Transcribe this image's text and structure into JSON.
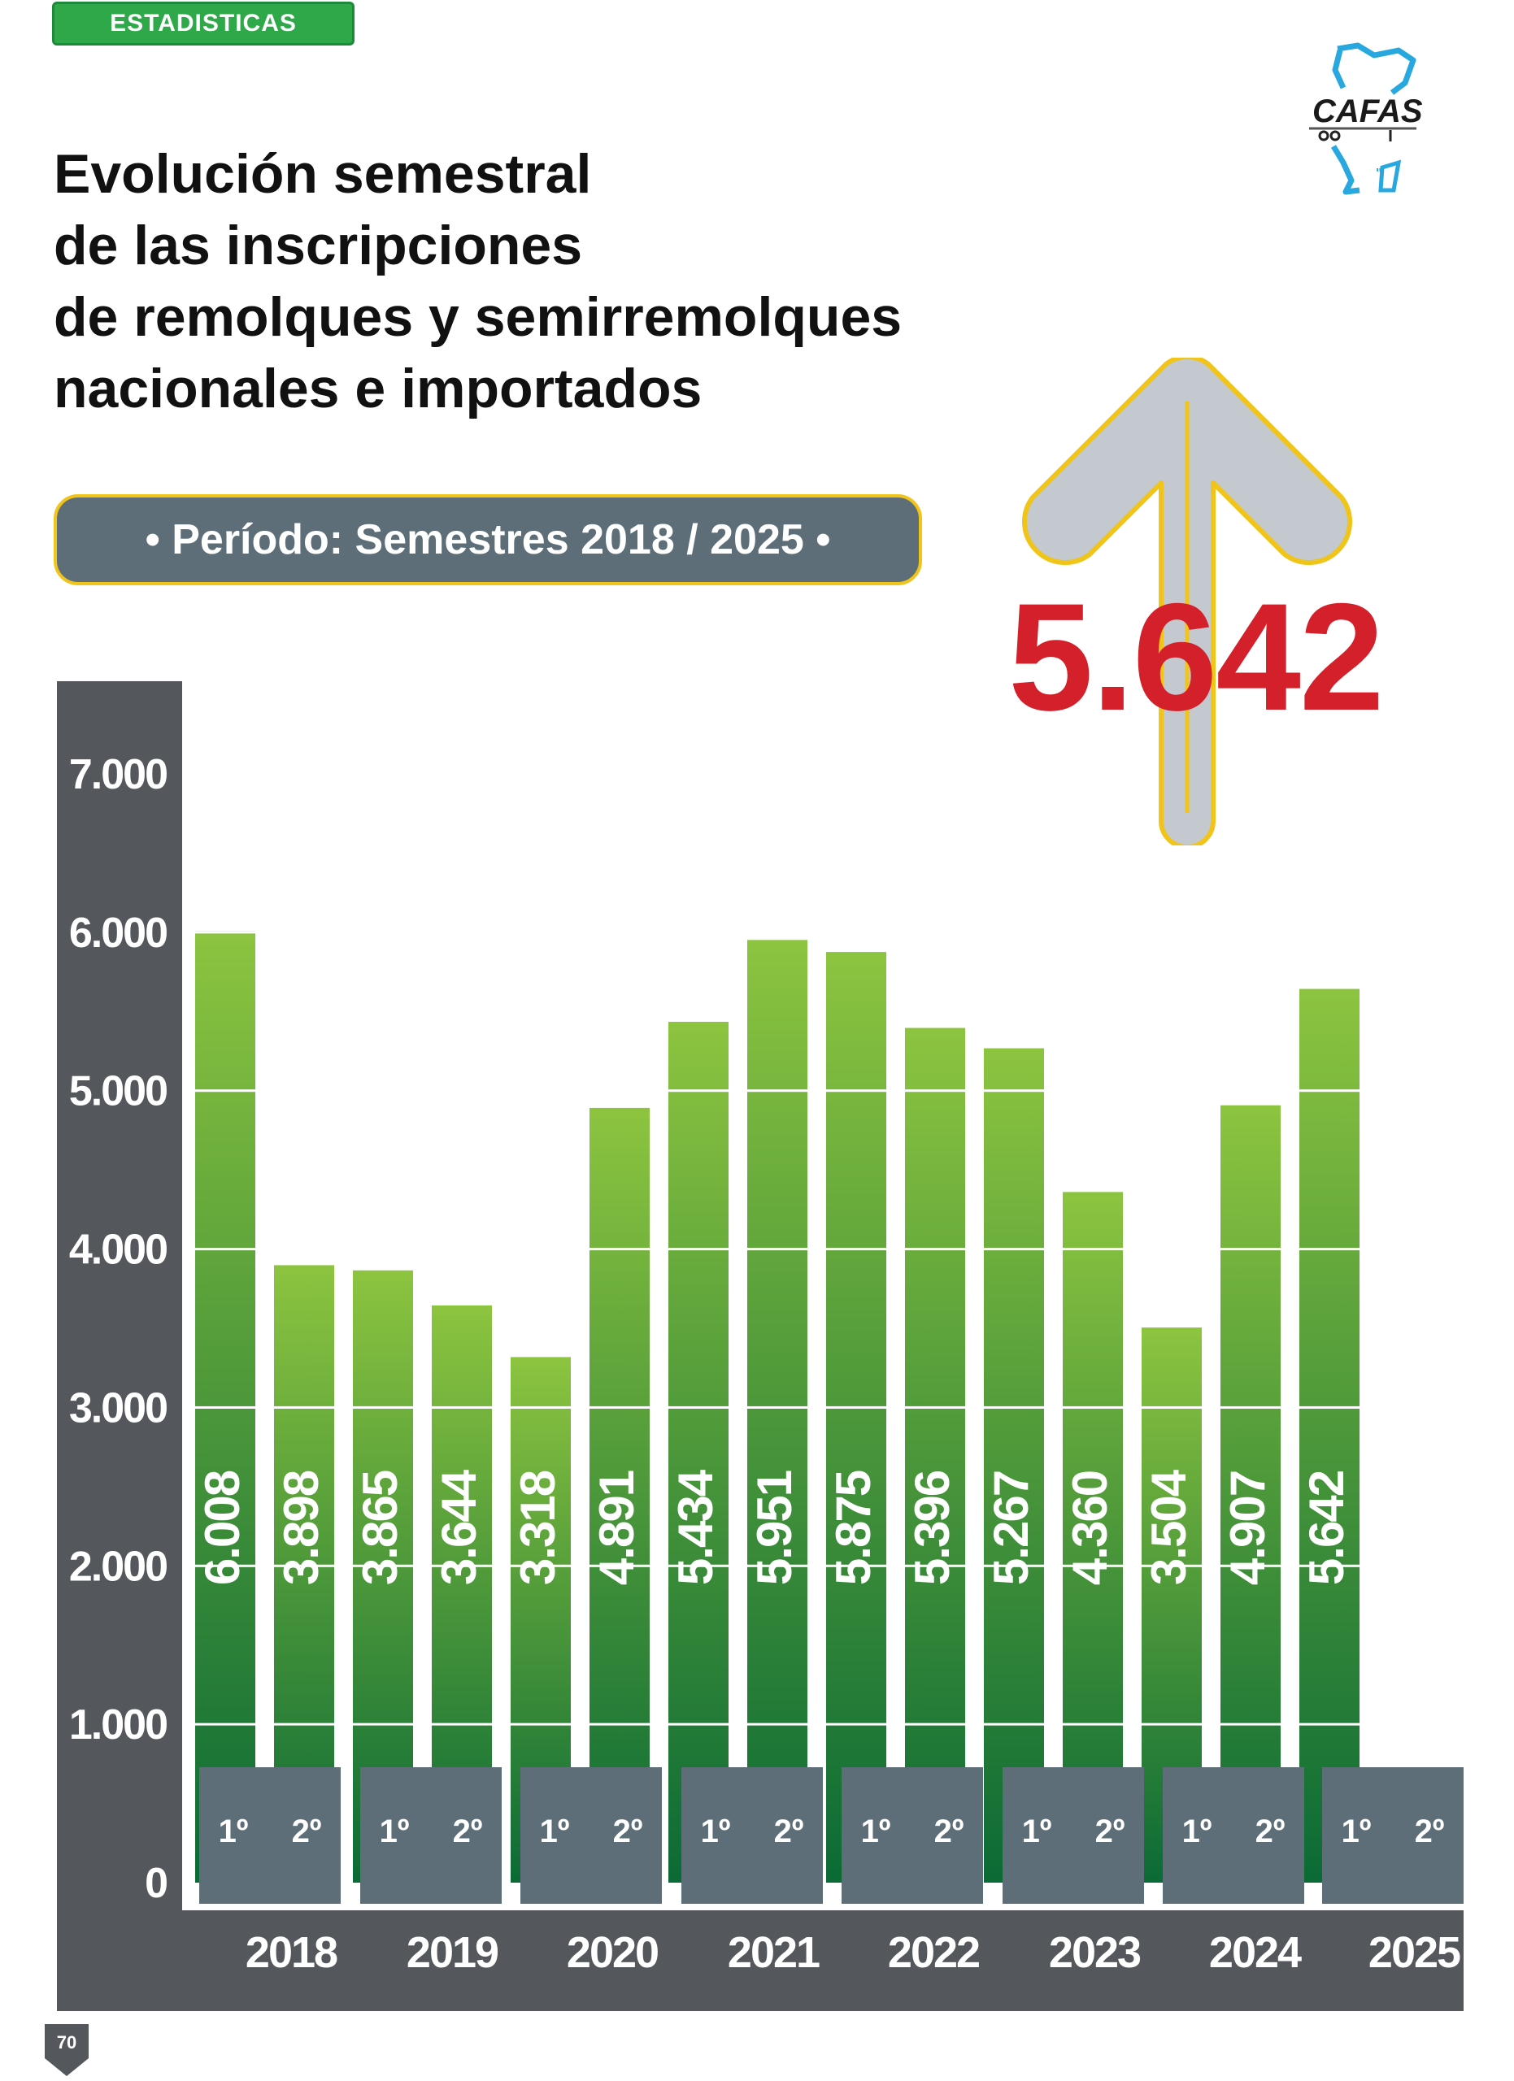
{
  "header": {
    "section_tag": "ESTADISTICAS",
    "title_lines": [
      "Evolución semestral",
      "de las inscripciones",
      "de remolques y semirremolques",
      "nacionales e importados"
    ],
    "period": "•  Período:  Semestres 2018 / 2025  •"
  },
  "logo": {
    "text": "CAFAS",
    "icon": "cafas-logo"
  },
  "highlight": {
    "value": "5.642",
    "icon": "up-arrow-icon",
    "color": "#d4202a"
  },
  "page_number": "70",
  "colors": {
    "bar_top": "#8cc43f",
    "bar_bottom": "#0b6a35",
    "axis_panel": "#54585c",
    "semester_box": "#5d6e78",
    "accent_yellow": "#f0c419"
  },
  "chart_data": {
    "type": "bar",
    "title": "Evolución semestral de las inscripciones de remolques y semirremolques nacionales e importados",
    "xlabel": "",
    "ylabel": "",
    "ylim": [
      0,
      7000
    ],
    "y_ticks": [
      0,
      1000,
      2000,
      3000,
      4000,
      5000,
      6000,
      7000
    ],
    "y_tick_labels": [
      "0",
      "1.000",
      "2.000",
      "3.000",
      "4.000",
      "5.000",
      "6.000",
      "7.000"
    ],
    "grid": true,
    "years": [
      "2018",
      "2019",
      "2020",
      "2021",
      "2022",
      "2023",
      "2024",
      "2025"
    ],
    "semester_labels": [
      "1º",
      "2º"
    ],
    "categories": [
      "2018 1º",
      "2018 2º",
      "2019 1º",
      "2019 2º",
      "2020 1º",
      "2020 2º",
      "2021 1º",
      "2021 2º",
      "2022 1º",
      "2022 2º",
      "2023 1º",
      "2023 2º",
      "2024 1º",
      "2024 2º",
      "2025 1º",
      "2025 2º"
    ],
    "values": [
      6008,
      3898,
      3865,
      3644,
      3318,
      4891,
      5434,
      5951,
      5875,
      5396,
      5267,
      4360,
      3504,
      4907,
      5642,
      null
    ],
    "value_labels": [
      "6.008",
      "3.898",
      "3.865",
      "3.644",
      "3.318",
      "4.891",
      "5.434",
      "5.951",
      "5.875",
      "5.396",
      "5.267",
      "4.360",
      "3.504",
      "4.907",
      "5.642",
      ""
    ]
  }
}
